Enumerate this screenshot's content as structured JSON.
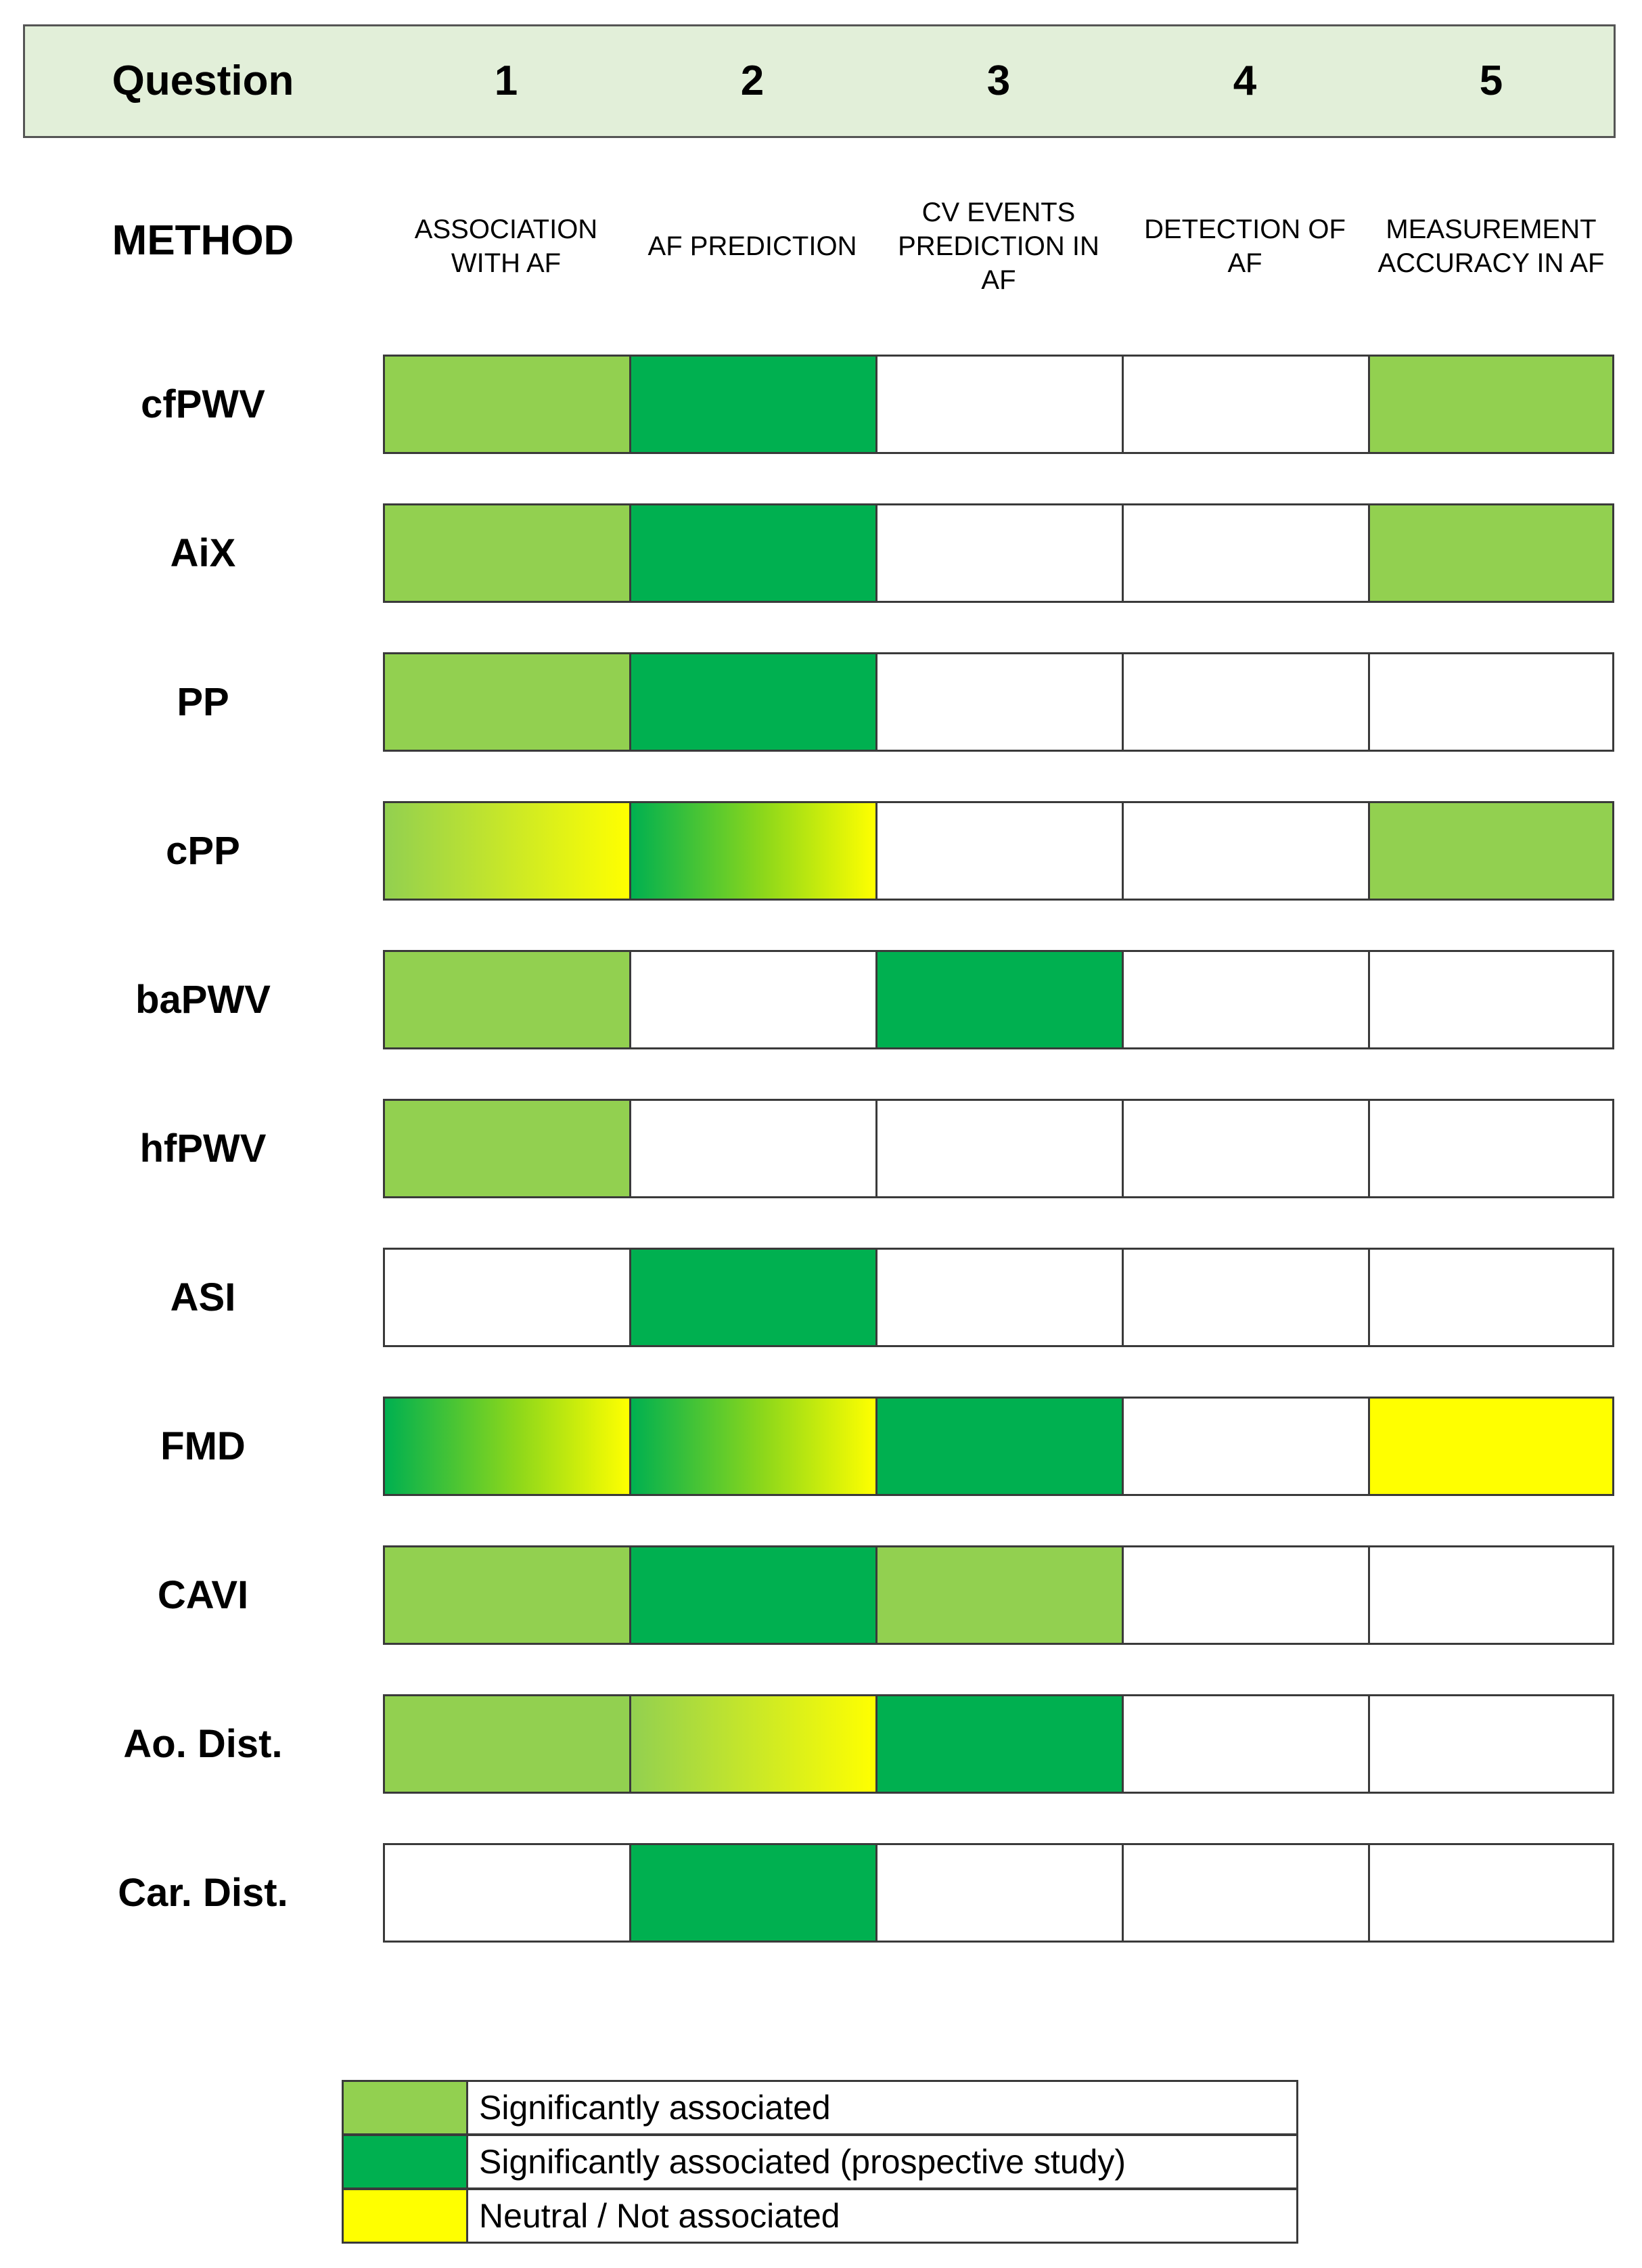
{
  "header": {
    "question_label": "Question",
    "numbers": [
      "1",
      "2",
      "3",
      "4",
      "5"
    ]
  },
  "method_label": "METHOD",
  "columns": [
    "ASSOCIATION\nWITH AF",
    "AF PREDICTION",
    "CV EVENTS\nPREDICTION IN\nAF",
    "DETECTION OF\nAF",
    "MEASUREMENT\nACCURACY IN AF"
  ],
  "colors": {
    "significant": "#92d050",
    "prospective": "#00b050",
    "neutral": "#ffff00",
    "empty": "#ffffff",
    "header_bg": "#e2efd9"
  },
  "rows": [
    {
      "label": "cfPWV",
      "cells": [
        "significant",
        "prospective",
        "empty",
        "empty",
        "significant"
      ]
    },
    {
      "label": "AiX",
      "cells": [
        "significant",
        "prospective",
        "empty",
        "empty",
        "significant"
      ]
    },
    {
      "label": "PP",
      "cells": [
        "significant",
        "prospective",
        "empty",
        "empty",
        "empty"
      ]
    },
    {
      "label": "cPP",
      "cells": [
        "significant-neutral",
        "prospective-neutral",
        "empty",
        "empty",
        "significant"
      ]
    },
    {
      "label": "baPWV",
      "cells": [
        "significant",
        "empty",
        "prospective",
        "empty",
        "empty"
      ]
    },
    {
      "label": "hfPWV",
      "cells": [
        "significant",
        "empty",
        "empty",
        "empty",
        "empty"
      ]
    },
    {
      "label": "ASI",
      "cells": [
        "empty",
        "prospective",
        "empty",
        "empty",
        "empty"
      ]
    },
    {
      "label": "FMD",
      "cells": [
        "prospective-neutral",
        "prospective-neutral",
        "prospective",
        "empty",
        "neutral"
      ]
    },
    {
      "label": "CAVI",
      "cells": [
        "significant",
        "prospective",
        "significant",
        "empty",
        "empty"
      ]
    },
    {
      "label": "Ao. Dist.",
      "cells": [
        "significant",
        "significant-neutral",
        "prospective",
        "empty",
        "empty"
      ]
    },
    {
      "label": "Car. Dist.",
      "cells": [
        "empty",
        "prospective",
        "empty",
        "empty",
        "empty"
      ]
    }
  ],
  "legend": [
    {
      "key": "significant",
      "label": "Significantly associated"
    },
    {
      "key": "prospective",
      "label": "Significantly associated (prospective study)"
    },
    {
      "key": "neutral",
      "label": "Neutral / Not associated"
    }
  ]
}
